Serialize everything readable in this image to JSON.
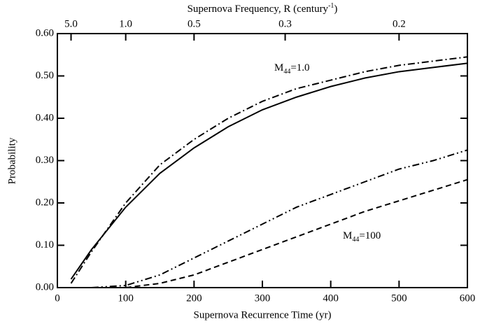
{
  "chart_data": {
    "type": "line",
    "xlabel": "Supernova Recurrence Time (yr)",
    "ylabel": "Probability",
    "x2label": {
      "text": "Supernova Frequency, R (century",
      "sup": "-1",
      "end": ")"
    },
    "x2scale": "reciprocal",
    "x": [
      20,
      50,
      100,
      150,
      200,
      250,
      300,
      350,
      400,
      450,
      500,
      550,
      600
    ],
    "series": [
      {
        "color": "#000",
        "dash": "solid",
        "values": [
          0.02,
          0.09,
          0.19,
          0.27,
          0.33,
          0.38,
          0.42,
          0.45,
          0.475,
          0.495,
          0.51,
          0.52,
          0.53
        ]
      },
      {
        "color": "#000",
        "dash": "dashdot",
        "values": [
          0.01,
          0.085,
          0.2,
          0.29,
          0.35,
          0.4,
          0.44,
          0.47,
          0.49,
          0.51,
          0.525,
          0.535,
          0.545
        ]
      },
      {
        "color": "#000",
        "dash": "dashdotdot",
        "values": [
          null,
          0,
          0.005,
          0.03,
          0.07,
          0.11,
          0.15,
          0.19,
          0.22,
          0.25,
          0.28,
          0.3,
          0.325
        ]
      },
      {
        "color": "#000",
        "dash": "dashed",
        "values": [
          null,
          null,
          0,
          0.01,
          0.03,
          0.06,
          0.09,
          0.12,
          0.15,
          0.18,
          0.205,
          0.23,
          0.255
        ]
      }
    ],
    "annotations": [
      {
        "text": "M",
        "sub": "44",
        "rest": "=1.0"
      },
      {
        "text": "M",
        "sub": "44",
        "rest": "=100"
      }
    ],
    "xlim": [
      0,
      600
    ],
    "xticks": [
      0,
      100,
      200,
      300,
      400,
      500,
      600
    ],
    "x2ticks": [
      {
        "value": 5,
        "label": "5.0"
      },
      {
        "value": 1,
        "label": "1.0"
      },
      0.5,
      0.3,
      0.2
    ],
    "ylim": [
      0,
      0.6
    ],
    "yticks": [
      {
        "value": 0,
        "label": "0.00"
      },
      {
        "value": 0.1,
        "label": "0.10"
      },
      {
        "value": 0.2,
        "label": "0.20"
      },
      {
        "value": 0.3,
        "label": "0.30"
      },
      {
        "value": 0.4,
        "label": "0.40"
      },
      {
        "value": 0.5,
        "label": "0.50"
      },
      {
        "value": 0.6,
        "label": "0.60"
      }
    ]
  }
}
